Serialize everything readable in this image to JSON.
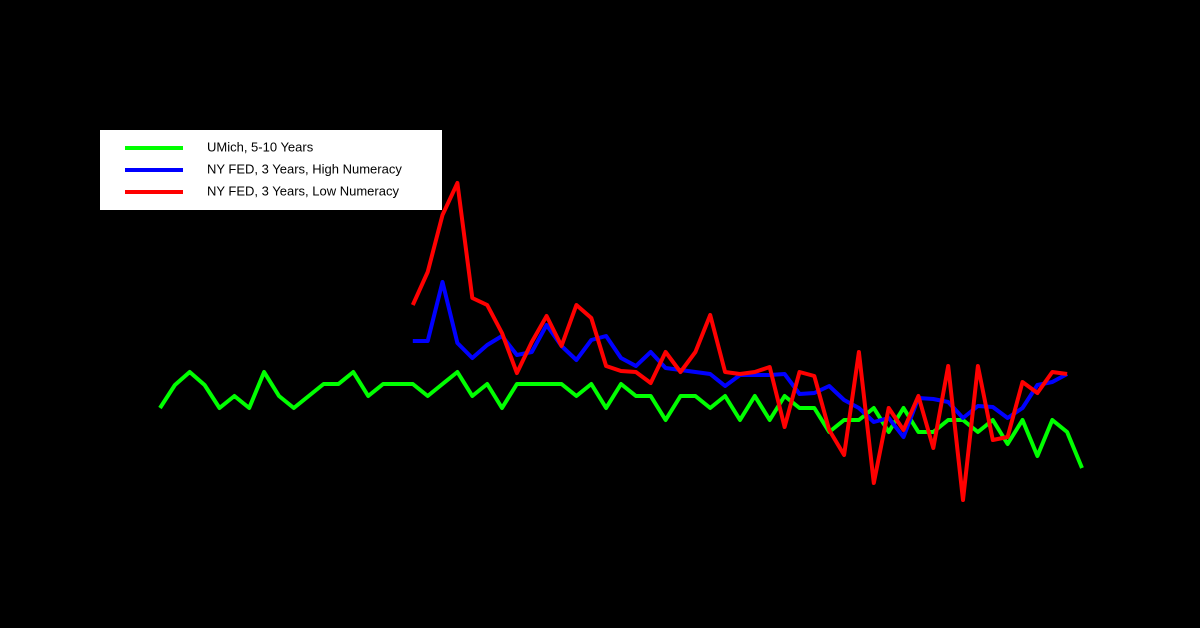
{
  "chart_data": {
    "type": "line",
    "categories": [
      null,
      null,
      null,
      null,
      null,
      null,
      null,
      null,
      null,
      null,
      null,
      null,
      null,
      null,
      null,
      null,
      null,
      null,
      null,
      null,
      null,
      null,
      null,
      null,
      null,
      null,
      null,
      null,
      null,
      null,
      null,
      null,
      null,
      null,
      null,
      null,
      null,
      null,
      null,
      null,
      null,
      null,
      null,
      null,
      null,
      null,
      null,
      null,
      null,
      null,
      null,
      null,
      null,
      null,
      null,
      null,
      null,
      null,
      null,
      null,
      null,
      null,
      null
    ],
    "ylim": [
      0,
      40
    ],
    "legend": "upper left",
    "series": [
      {
        "name": "UMich, 5-10 Years",
        "color": "#00ff00",
        "values": [
          9.2,
          11.5,
          12.8,
          11.5,
          9.2,
          10.4,
          9.2,
          12.8,
          10.4,
          9.2,
          10.4,
          11.6,
          11.6,
          12.8,
          10.4,
          11.6,
          11.6,
          11.6,
          10.4,
          11.6,
          12.8,
          10.4,
          11.6,
          9.2,
          11.6,
          11.6,
          11.6,
          11.6,
          10.4,
          11.6,
          9.2,
          11.6,
          10.4,
          10.4,
          8.0,
          10.4,
          10.4,
          9.2,
          10.4,
          8.0,
          10.4,
          8.0,
          10.4,
          9.2,
          9.2,
          6.8,
          8.0,
          8.0,
          9.2,
          6.8,
          9.2,
          6.8,
          6.8,
          8.0,
          8.0,
          6.8,
          8.0,
          5.6,
          8.0,
          4.4,
          8.0,
          6.8,
          3.2
        ]
      },
      {
        "name": "NY FED, 3 Years, High Numeracy",
        "color": "#0000ff",
        "values": [
          null,
          null,
          null,
          null,
          null,
          null,
          null,
          null,
          null,
          null,
          null,
          null,
          null,
          null,
          null,
          null,
          null,
          15.9,
          15.9,
          21.8,
          15.7,
          14.2,
          15.5,
          16.4,
          14.5,
          14.8,
          17.5,
          15.4,
          14.0,
          16.0,
          16.4,
          14.2,
          13.4,
          14.8,
          13.2,
          13.0,
          12.8,
          12.6,
          11.4,
          12.5,
          12.5,
          12.5,
          12.6,
          10.6,
          10.7,
          11.4,
          10.0,
          9.2,
          7.8,
          8.2,
          6.3,
          10.2,
          10.1,
          9.8,
          8.2,
          9.4,
          9.3,
          8.2,
          9.2,
          11.5,
          11.8,
          12.6,
          null
        ]
      },
      {
        "name": "NY FED, 3 Years, Low Numeracy",
        "color": "#ff0000",
        "values": [
          null,
          null,
          null,
          null,
          null,
          null,
          null,
          null,
          null,
          null,
          null,
          null,
          null,
          null,
          null,
          null,
          null,
          19.5,
          22.8,
          28.5,
          31.7,
          20.2,
          19.5,
          16.7,
          12.7,
          15.8,
          18.4,
          15.4,
          19.5,
          18.2,
          13.4,
          12.9,
          12.8,
          11.7,
          14.8,
          12.8,
          14.8,
          18.5,
          12.8,
          12.6,
          12.8,
          13.3,
          7.3,
          12.8,
          12.4,
          7.0,
          4.5,
          14.8,
          1.7,
          9.2,
          7.0,
          10.4,
          5.2,
          13.4,
          0.0,
          13.4,
          6.0,
          6.3,
          11.8,
          10.7,
          12.8,
          12.6,
          null
        ]
      }
    ]
  }
}
